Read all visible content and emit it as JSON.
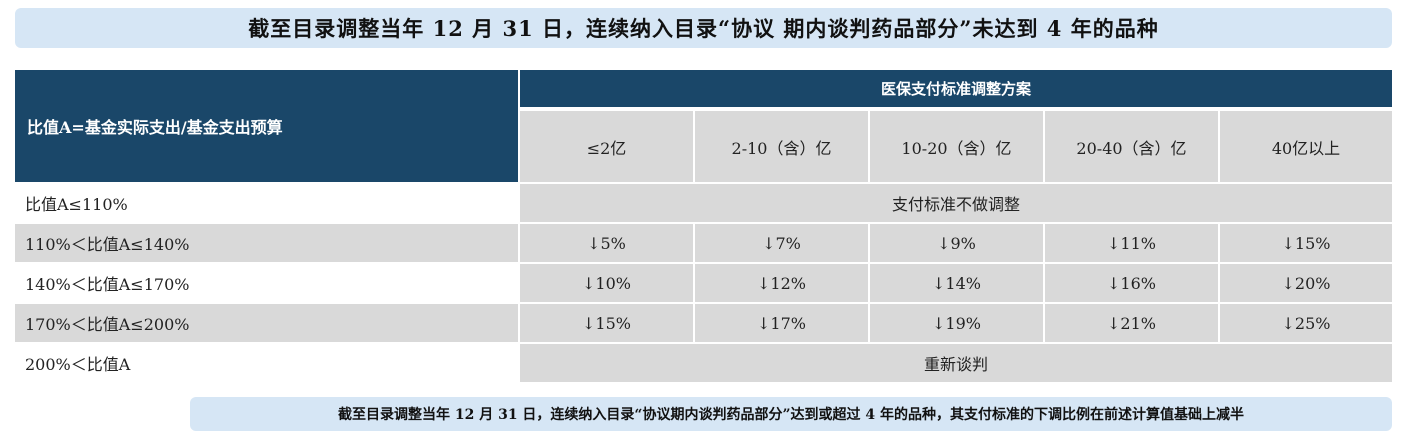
{
  "title": "截至目录调整当年 12 月 31 日，连续纳入目录“协议 期内谈判药品部分”未达到 4 年的品种",
  "table": {
    "left_header": "比值A=基金实际支出/基金支出预算",
    "group_header": "医保支付标准调整方案",
    "columns": [
      "≤2亿",
      "2-10（含）亿",
      "10-20（含）亿",
      "20-40（含）亿",
      "40亿以上"
    ],
    "rows": [
      {
        "label": "比值A≤110%",
        "span_text": "支付标准不做调整"
      },
      {
        "label": "110%＜比值A≤140%",
        "values": [
          "↓5%",
          "↓7%",
          "↓9%",
          "↓11%",
          "↓15%"
        ]
      },
      {
        "label": "140%＜比值A≤170%",
        "values": [
          "↓10%",
          "↓12%",
          "↓14%",
          "↓16%",
          "↓20%"
        ]
      },
      {
        "label": "170%＜比值A≤200%",
        "values": [
          "↓15%",
          "↓17%",
          "↓19%",
          "↓21%",
          "↓25%"
        ]
      },
      {
        "label": "200%＜比值A",
        "span_text": "重新谈判"
      }
    ]
  },
  "note": "截至目录调整当年 12 月 31 日，连续纳入目录“协议期内谈判药品部分”达到或超过 4 年的品种，其支付标准的下调比例在前述计算值基础上减半",
  "colors": {
    "header_navy": "#1a4769",
    "light_blue_bar": "#d6e6f5",
    "grey_cell": "#d9d9d9"
  }
}
